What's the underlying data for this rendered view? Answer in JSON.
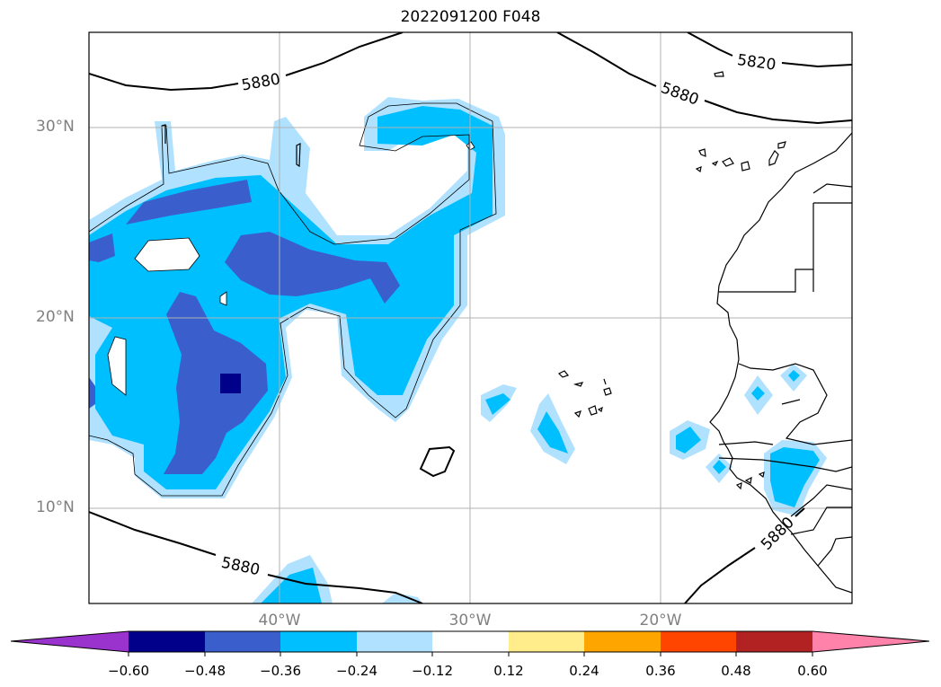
{
  "title": "2022091200 F048",
  "map": {
    "lat_labels": [
      "30°N",
      "20°N",
      "10°N"
    ],
    "lon_labels": [
      "40°W",
      "30°W",
      "20°W"
    ],
    "extent": {
      "lon_min": -50,
      "lon_max": -10,
      "lat_min": 5,
      "lat_max": 35
    },
    "gridlines": true,
    "contour_labels": [
      "5880",
      "5820",
      "5880",
      "5880",
      "5880"
    ]
  },
  "colorbar": {
    "tick_labels": [
      "−0.60",
      "−0.48",
      "−0.36",
      "−0.24",
      "−0.12",
      "0.12",
      "0.24",
      "0.36",
      "0.48",
      "0.60"
    ],
    "extend": "both",
    "colors": [
      "#9a32cd",
      "#00008b",
      "#3a5fcd",
      "#00bfff",
      "#b0e2ff",
      "#ffffff",
      "#ffec8b",
      "#ffa500",
      "#ff4500",
      "#b22222",
      "#ff82ab"
    ]
  },
  "fill_colors": {
    "level_neg_024": "#b0e2ff",
    "level_neg_036": "#00bfff",
    "level_neg_048": "#3a5fcd",
    "level_neg_060": "#00008b"
  }
}
